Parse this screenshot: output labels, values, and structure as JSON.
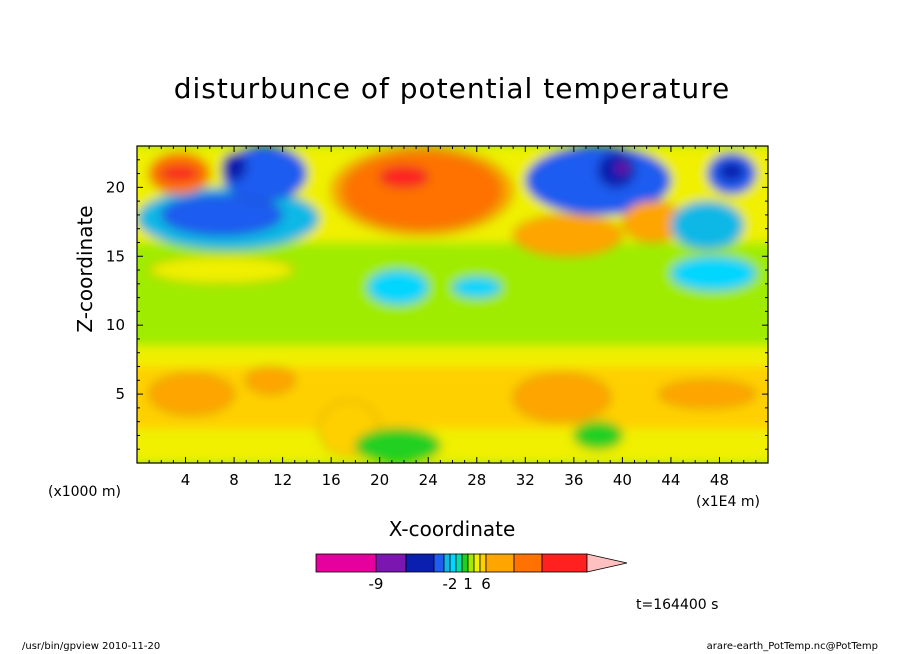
{
  "chart_data": {
    "type": "heatmap",
    "title": "disturbunce of potential temperature",
    "xlabel": "X-coordinate",
    "ylabel": "Z-coordinate",
    "x_unit_left": "(x1000 m)",
    "x_unit_right": "(x1E4 m)",
    "xlim": [
      0,
      52
    ],
    "ylim": [
      0,
      23
    ],
    "xticks": [
      4,
      8,
      12,
      16,
      20,
      24,
      28,
      32,
      36,
      40,
      44,
      48
    ],
    "yticks": [
      5,
      10,
      15,
      20
    ],
    "colorbar": {
      "levels": [
        -12,
        -9,
        -6,
        -4,
        -3,
        -2,
        -1,
        0,
        1,
        2,
        3,
        6,
        9,
        12
      ],
      "labels": [
        "-9",
        "-2",
        "1",
        "6"
      ],
      "colors": [
        "#e6009e",
        "#7b16b0",
        "#0a1eb0",
        "#1f5cf0",
        "#10b8e6",
        "#00d6ff",
        "#00e0a8",
        "#20d020",
        "#a0ec00",
        "#f0f000",
        "#ffd000",
        "#ffa500",
        "#ff7200",
        "#ff2020",
        "#ff8080",
        "#ffc0c0"
      ]
    },
    "time_label": "t=164400 s",
    "regions": [
      {
        "value": 0.5,
        "x": [
          0,
          52
        ],
        "z": [
          8.5,
          16
        ]
      },
      {
        "value": 1.5,
        "x": [
          0,
          52
        ],
        "z": [
          0,
          8.5
        ]
      },
      {
        "value": 2.5,
        "x": [
          0,
          52
        ],
        "z": [
          2.5,
          7
        ]
      },
      {
        "value": 4,
        "x": [
          1,
          8
        ],
        "z": [
          3.5,
          6.5
        ]
      },
      {
        "value": 4,
        "x": [
          31,
          39
        ],
        "z": [
          3,
          6.5
        ]
      },
      {
        "value": 4,
        "x": [
          43,
          51
        ],
        "z": [
          4,
          6
        ]
      },
      {
        "value": 3,
        "x": [
          9,
          13
        ],
        "z": [
          5,
          7
        ]
      },
      {
        "value": 2,
        "x": [
          15,
          20
        ],
        "z": [
          0.5,
          4.5
        ]
      },
      {
        "value": -0.5,
        "x": [
          18,
          25
        ],
        "z": [
          0,
          2.5
        ]
      },
      {
        "value": -0.5,
        "x": [
          36,
          40
        ],
        "z": [
          1,
          3
        ]
      },
      {
        "value": -0.5,
        "x": [
          3,
          11
        ],
        "z": [
          13,
          15
        ]
      },
      {
        "value": 1.2,
        "x": [
          1,
          13
        ],
        "z": [
          13,
          15
        ]
      },
      {
        "value": -2.5,
        "x": [
          19,
          24
        ],
        "z": [
          11.5,
          14
        ]
      },
      {
        "value": -2.5,
        "x": [
          26,
          30
        ],
        "z": [
          12,
          13.5
        ]
      },
      {
        "value": -2.5,
        "x": [
          44,
          51
        ],
        "z": [
          12.5,
          15
        ]
      },
      {
        "value": 1,
        "x": [
          0,
          52
        ],
        "z": [
          16,
          23
        ]
      },
      {
        "value": -4,
        "x": [
          0,
          15
        ],
        "z": [
          15.5,
          20
        ]
      },
      {
        "value": -6,
        "x": [
          2,
          12
        ],
        "z": [
          16.5,
          19.5
        ]
      },
      {
        "value": -6,
        "x": [
          7,
          14
        ],
        "z": [
          19,
          23
        ]
      },
      {
        "value": -9,
        "x": [
          7,
          9
        ],
        "z": [
          20.5,
          22.5
        ]
      },
      {
        "value": 6,
        "x": [
          1,
          6
        ],
        "z": [
          19.5,
          22.5
        ]
      },
      {
        "value": 9,
        "x": [
          2,
          5
        ],
        "z": [
          20.5,
          21.5
        ]
      },
      {
        "value": 4,
        "x": [
          16,
          31
        ],
        "z": [
          16.5,
          23
        ]
      },
      {
        "value": 6,
        "x": [
          17,
          30
        ],
        "z": [
          17,
          22.5
        ]
      },
      {
        "value": 9,
        "x": [
          20,
          24
        ],
        "z": [
          20,
          21.5
        ]
      },
      {
        "value": 6,
        "x": [
          32,
          37
        ],
        "z": [
          15.5,
          17
        ]
      },
      {
        "value": 3,
        "x": [
          31,
          40
        ],
        "z": [
          15,
          18
        ]
      },
      {
        "value": -6,
        "x": [
          32,
          44
        ],
        "z": [
          18,
          23
        ]
      },
      {
        "value": -9,
        "x": [
          38,
          41
        ],
        "z": [
          20,
          22.5
        ]
      },
      {
        "value": -12,
        "x": [
          39.5,
          40.5
        ],
        "z": [
          21,
          21.8
        ]
      },
      {
        "value": -6,
        "x": [
          47,
          51
        ],
        "z": [
          19.5,
          22.5
        ]
      },
      {
        "value": -9,
        "x": [
          48,
          50
        ],
        "z": [
          20.5,
          21.8
        ]
      },
      {
        "value": 4,
        "x": [
          40,
          45
        ],
        "z": [
          16,
          19
        ]
      },
      {
        "value": -4,
        "x": [
          44,
          50
        ],
        "z": [
          15.5,
          19
        ]
      }
    ]
  },
  "footer": {
    "left": "/usr/bin/gpview  2010-11-20",
    "right": "arare-earth_PotTemp.nc@PotTemp"
  }
}
